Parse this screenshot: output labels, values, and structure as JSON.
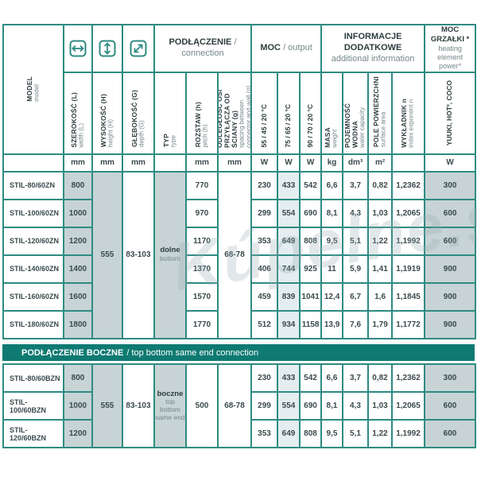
{
  "page": {
    "watermark": "Kúpelne.sk"
  },
  "colors": {
    "teal_border": "#2E8B82",
    "section_bar": "#0E7A72",
    "cell_gray": "#C7D3D5",
    "cell_highlight": "#E4EDEF",
    "text_dark": "#2E3C3E",
    "text_light": "#75878A"
  },
  "header": {
    "model_pl": "MODEL",
    "model_en": "model",
    "dims": [
      {
        "pl": "SZEROKOŚĆ (L)",
        "en": "width (L)"
      },
      {
        "pl": "WYSOKOŚĆ (H)",
        "en": "height (H)"
      },
      {
        "pl": "GŁĘBOKOŚĆ (G)",
        "en": "depth (G)"
      }
    ],
    "groups": {
      "connection_pl": "PODŁĄCZENIE",
      "connection_en": "/ connection",
      "output_pl": "MOC",
      "output_en": "/ output",
      "info_pl": "INFORMACJE DODATKOWE",
      "info_en": "additional information",
      "heater_pl": "MOC GRZAŁKI *",
      "heater_en": "heating element power*"
    },
    "cols": {
      "typ_pl": "TYP",
      "typ_en": "type",
      "rozstaw_pl": "ROZSTAW (h)",
      "rozstaw_en": "pitch (h)",
      "odleglosc_pl": "ODLEGŁOŚĆ OSI PRZYŁĄCZA OD ŚCIANY (g)",
      "odleglosc_en": "spacing between connector and wall (g)",
      "moc1": "55 / 45 / 20 °C",
      "moc2": "75 / 65 / 20 °C",
      "moc3": "90 / 70 / 20 °C",
      "masa_pl": "MASA",
      "masa_en": "weight",
      "pojemnosc_pl": "POJEMNOŚĆ WODNA",
      "pojemnosc_en": "water capacity",
      "pole_pl": "POLE POWIERZCHNI",
      "pole_en": "surface area",
      "wykladnik_pl": "WYKŁADNIK n",
      "wykladnik_en": "index exponent n",
      "heater_brands": "YUUKI, HOT², COCO"
    },
    "units": {
      "model": "",
      "width": "mm",
      "height": "mm",
      "depth": "mm",
      "rozstaw": "mm",
      "odleglosc": "mm",
      "moc1": "W",
      "moc2": "W",
      "moc3": "W",
      "masa": "kg",
      "pojemnosc": "dm³",
      "pole": "m²",
      "heater": "W"
    }
  },
  "upper_table": {
    "shared": {
      "height": "555",
      "depth": "83-103",
      "typ_pl": "dolne",
      "typ_en": "bottom",
      "odleglosc": "68-78"
    },
    "rows": [
      {
        "model": "STIL-80/60ZN",
        "width": "800",
        "rozstaw": "770",
        "values": [
          "230",
          "433",
          "542",
          "6,6",
          "3,7",
          "0,82",
          "1,2362",
          "300"
        ]
      },
      {
        "model": "STIL-100/60ZN",
        "width": "1000",
        "rozstaw": "970",
        "values": [
          "299",
          "554",
          "690",
          "8,1",
          "4,3",
          "1,03",
          "1,2065",
          "600"
        ]
      },
      {
        "model": "STIL-120/60ZN",
        "width": "1200",
        "rozstaw": "1170",
        "values": [
          "353",
          "649",
          "808",
          "9,5",
          "5,1",
          "1,22",
          "1,1992",
          "600"
        ]
      },
      {
        "model": "STIL-140/60ZN",
        "width": "1400",
        "rozstaw": "1370",
        "values": [
          "406",
          "744",
          "925",
          "11",
          "5,9",
          "1,41",
          "1,1919",
          "900"
        ]
      },
      {
        "model": "STIL-160/60ZN",
        "width": "1600",
        "rozstaw": "1570",
        "values": [
          "459",
          "839",
          "1041",
          "12,4",
          "6,7",
          "1,6",
          "1,1845",
          "900"
        ]
      },
      {
        "model": "STIL-180/60ZN",
        "width": "1800",
        "rozstaw": "1770",
        "values": [
          "512",
          "934",
          "1158",
          "13,9",
          "7,6",
          "1,79",
          "1,1772",
          "900"
        ]
      }
    ]
  },
  "section_bar": {
    "pl": "PODŁĄCZENIE BOCZNE",
    "en": "/ top bottom same end connection"
  },
  "lower_table": {
    "shared": {
      "height": "555",
      "depth": "83-103",
      "typ_pl": "boczne",
      "typ_en": "top bottom same end",
      "rozstaw": "500",
      "odleglosc": "68-78"
    },
    "rows": [
      {
        "model": "STIL-80/60BZN",
        "width": "800",
        "values": [
          "230",
          "433",
          "542",
          "6,6",
          "3,7",
          "0,82",
          "1,2362",
          "300"
        ]
      },
      {
        "model": "STIL-100/60BZN",
        "width": "1000",
        "values": [
          "299",
          "554",
          "690",
          "8,1",
          "4,3",
          "1,03",
          "1,2065",
          "600"
        ]
      },
      {
        "model": "STIL-120/60BZN",
        "width": "1200",
        "values": [
          "353",
          "649",
          "808",
          "9,5",
          "5,1",
          "1,22",
          "1,1992",
          "600"
        ]
      }
    ]
  }
}
